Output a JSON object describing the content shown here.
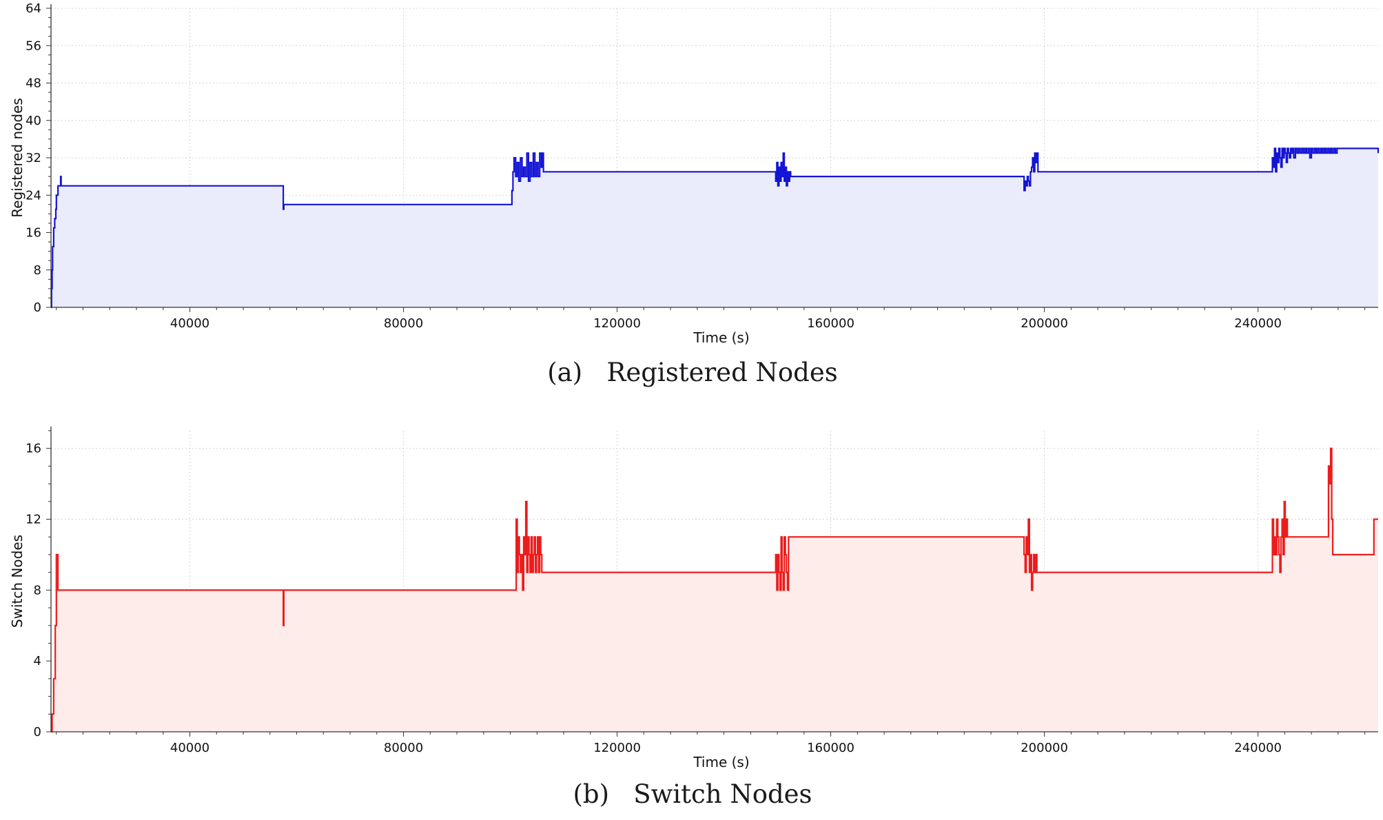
{
  "chart_data": [
    {
      "type": "area",
      "caption": "(a)   Registered Nodes",
      "xlabel": "Time (s)",
      "ylabel": "Registered nodes",
      "xlim": [
        14000,
        262500
      ],
      "ylim": [
        0,
        64
      ],
      "xticks": [
        40000,
        80000,
        120000,
        160000,
        200000,
        240000
      ],
      "yticks": [
        0,
        8,
        16,
        24,
        32,
        40,
        48,
        56,
        64
      ],
      "grid": true,
      "color": "#1414d6",
      "fill": "#ebecfb",
      "x": [
        14000,
        14100,
        14200,
        14300,
        14500,
        14700,
        14900,
        15000,
        15300,
        15800,
        15900,
        16000,
        57500,
        57500,
        57600,
        57700,
        100000,
        100300,
        100500,
        100700,
        101000,
        101300,
        101600,
        101900,
        102200,
        102500,
        102800,
        103100,
        103400,
        103700,
        104000,
        104300,
        104600,
        104900,
        105200,
        105500,
        105800,
        106000,
        106200,
        149500,
        149700,
        149900,
        150100,
        150300,
        150500,
        150700,
        150900,
        151100,
        151300,
        151500,
        151700,
        151900,
        152100,
        152300,
        152500,
        196000,
        196200,
        196400,
        196600,
        196800,
        197000,
        197200,
        197400,
        197600,
        197800,
        198000,
        198200,
        198400,
        198600,
        198800,
        199000,
        242500,
        242700,
        242900,
        243100,
        243300,
        243500,
        243700,
        243900,
        244100,
        244300,
        244500,
        244700,
        244900,
        245100,
        245300,
        245500,
        245700,
        245900,
        246100,
        246300,
        246500,
        246700,
        247000,
        247300,
        247600,
        247900,
        248200,
        248500,
        248800,
        249100,
        249400,
        249700,
        250000,
        250300,
        250600,
        250900,
        251200,
        251500,
        251800,
        252100,
        252400,
        252700,
        253000,
        253300,
        253600,
        253900,
        254200,
        254500,
        254800,
        262500
      ],
      "y": [
        0,
        4,
        8,
        13,
        17,
        19,
        21,
        24,
        26,
        28,
        26,
        26,
        26,
        21,
        22,
        22,
        22,
        25,
        29,
        32,
        28,
        31,
        27,
        32,
        28,
        30,
        28,
        33,
        27,
        31,
        28,
        33,
        28,
        31,
        28,
        33,
        30,
        33,
        29,
        29,
        27,
        31,
        26,
        30,
        27,
        31,
        28,
        33,
        27,
        30,
        26,
        29,
        27,
        29,
        28,
        28,
        25,
        27,
        26,
        28,
        27,
        26,
        29,
        30,
        32,
        29,
        33,
        31,
        33,
        29,
        29,
        29,
        32,
        30,
        34,
        29,
        33,
        31,
        34,
        32,
        30,
        34,
        32,
        34,
        33,
        31,
        34,
        33,
        32,
        34,
        33,
        34,
        32,
        34,
        33,
        34,
        33,
        34,
        33,
        34,
        33,
        34,
        32,
        34,
        33,
        34,
        33,
        34,
        33,
        34,
        33,
        34,
        33,
        34,
        33,
        34,
        33,
        34,
        33,
        34,
        33
      ]
    },
    {
      "type": "area",
      "caption": "(b)   Switch Nodes",
      "xlabel": "Time (s)",
      "ylabel": "Switch Nodes",
      "xlim": [
        14000,
        262500
      ],
      "ylim": [
        0,
        17
      ],
      "xticks": [
        40000,
        80000,
        120000,
        160000,
        200000,
        240000
      ],
      "yticks": [
        0,
        4,
        8,
        12,
        16
      ],
      "grid": true,
      "color": "#ec1c1c",
      "fill": "#fdecea",
      "x": [
        14000,
        14200,
        14500,
        14800,
        15000,
        15300,
        15600,
        16000,
        57500,
        57500,
        57600,
        57700,
        101000,
        101100,
        101300,
        101500,
        101700,
        101900,
        102100,
        102300,
        102500,
        102700,
        102900,
        103100,
        103300,
        103500,
        103700,
        103900,
        104100,
        104300,
        104500,
        104700,
        104900,
        105100,
        105300,
        105500,
        105700,
        105900,
        106100,
        149500,
        149700,
        149900,
        150100,
        150300,
        150500,
        150700,
        150900,
        151100,
        151300,
        151500,
        151700,
        151900,
        152100,
        152300,
        152500,
        196000,
        196200,
        196400,
        196600,
        196800,
        197000,
        197200,
        197400,
        197600,
        197800,
        198000,
        198200,
        198400,
        198600,
        198800,
        199000,
        242500,
        242700,
        242900,
        243100,
        243300,
        243500,
        243700,
        243900,
        244100,
        244300,
        244500,
        244700,
        244900,
        245100,
        245300,
        245500,
        245700,
        245900,
        246100,
        246300,
        246500,
        253000,
        253200,
        253400,
        253600,
        253800,
        254000,
        254200,
        261500,
        261700,
        262500
      ],
      "y": [
        0,
        1,
        3,
        6,
        10,
        8,
        8,
        8,
        8,
        6,
        8,
        8,
        8,
        12,
        9,
        11,
        10,
        9,
        10,
        8,
        11,
        10,
        13,
        9,
        11,
        10,
        9,
        11,
        9,
        10,
        11,
        9,
        10,
        11,
        9,
        11,
        10,
        9,
        9,
        9,
        10,
        8,
        10,
        9,
        8,
        11,
        9,
        8,
        11,
        10,
        9,
        8,
        11,
        11,
        11,
        11,
        10,
        9,
        11,
        10,
        12,
        9,
        10,
        8,
        9,
        10,
        9,
        10,
        9,
        9,
        9,
        9,
        12,
        10,
        11,
        10,
        12,
        11,
        10,
        9,
        11,
        12,
        10,
        13,
        11,
        12,
        11,
        11,
        11,
        11,
        11,
        11,
        11,
        15,
        14,
        16,
        12,
        10,
        10,
        10,
        12,
        12
      ]
    }
  ]
}
